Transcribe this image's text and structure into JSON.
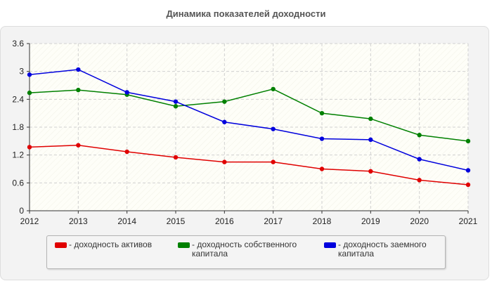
{
  "chart_data": {
    "type": "line",
    "title": "Динамика показателей доходности",
    "x": [
      "2012",
      "2013",
      "2014",
      "2015",
      "2016",
      "2017",
      "2018",
      "2019",
      "2020",
      "2021"
    ],
    "ylim": [
      0,
      3.6
    ],
    "yticks": [
      "0",
      "0.6",
      "1.2",
      "1.8",
      "2.4",
      "3",
      "3.6"
    ],
    "grid": true,
    "legend_position": "bottom",
    "series": [
      {
        "name": "- доходность активов",
        "color": "#e00000",
        "values": [
          1.37,
          1.41,
          1.27,
          1.15,
          1.05,
          1.05,
          0.9,
          0.85,
          0.66,
          0.56
        ]
      },
      {
        "name": "- доходность собственного капитала",
        "color": "#008000",
        "values": [
          2.54,
          2.6,
          2.5,
          2.25,
          2.35,
          2.62,
          2.1,
          1.98,
          1.63,
          1.5
        ]
      },
      {
        "name": "- доходность заемного капитала",
        "color": "#0000dd",
        "values": [
          2.93,
          3.04,
          2.55,
          2.35,
          1.91,
          1.76,
          1.55,
          1.53,
          1.11,
          0.87
        ]
      }
    ]
  }
}
